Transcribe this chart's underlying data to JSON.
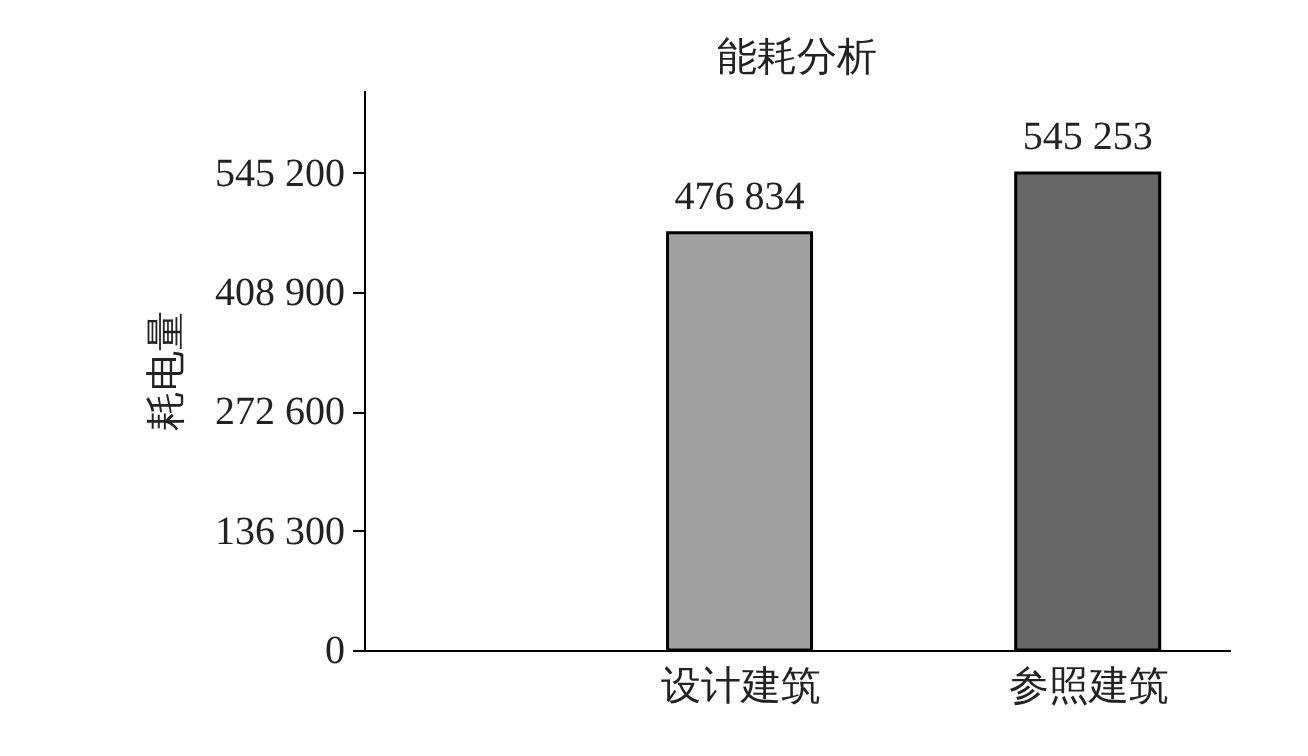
{
  "chart_data": {
    "type": "bar",
    "title": "能耗分析",
    "ylabel": "耗电量",
    "categories": [
      "设计建筑",
      "参照建筑"
    ],
    "values": [
      476834,
      545253
    ],
    "colors": [
      "#a0a0a0",
      "#666666"
    ],
    "value_labels": [
      "476 834",
      "545 253"
    ],
    "ylim": [
      0,
      640000
    ],
    "yticks": [
      0,
      {
        "value": 136300,
        "label": "136 300"
      },
      {
        "value": 272600,
        "label": "272 600"
      },
      {
        "value": 408900,
        "label": "408 900"
      },
      {
        "value": 545200,
        "label": "545 200"
      }
    ],
    "grid": false
  }
}
